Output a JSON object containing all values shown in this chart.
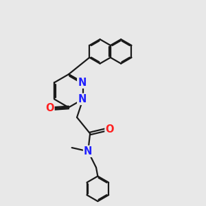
{
  "bg_color": "#e8e8e8",
  "bond_color": "#1a1a1a",
  "N_color": "#2020ff",
  "O_color": "#ff2020",
  "lw": 1.6,
  "dbo": 0.055,
  "fs": 10.5,
  "fig_size": [
    3.0,
    3.0
  ],
  "dpi": 100,
  "xlim": [
    0,
    10
  ],
  "ylim": [
    0,
    10
  ]
}
